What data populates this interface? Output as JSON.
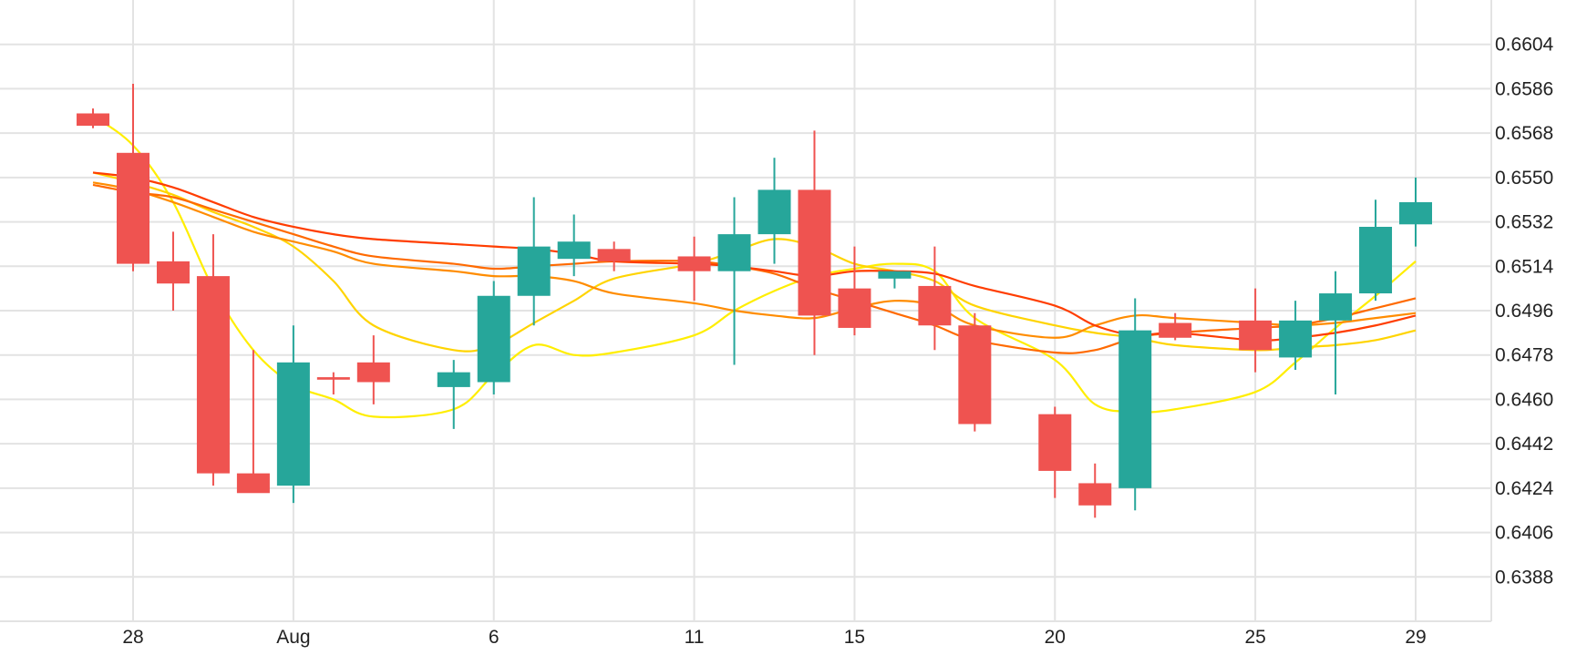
{
  "chart_data": {
    "type": "candlestick",
    "x_axis": {
      "ticks": [
        "28",
        "Aug",
        "6",
        "11",
        "15",
        "20",
        "25",
        "29"
      ],
      "tick_positions": [
        "Jul 28",
        "Aug 1",
        "Aug 6",
        "Aug 11",
        "Aug 15",
        "Aug 20",
        "Aug 25",
        "Aug 29"
      ]
    },
    "y_axis": {
      "position": "right",
      "range": [
        0.637,
        0.6622
      ],
      "ticks": [
        "0.6604",
        "0.6586",
        "0.6568",
        "0.6550",
        "0.6532",
        "0.6514",
        "0.6496",
        "0.6478",
        "0.6460",
        "0.6442",
        "0.6424",
        "0.6406",
        "0.6388"
      ]
    },
    "grid": true,
    "colors": {
      "up": "#26a69a",
      "down": "#ef5350",
      "grid": "#e3e3e3"
    },
    "candles": [
      {
        "date": "Jul 27",
        "open": 0.6576,
        "high": 0.6578,
        "low": 0.657,
        "close": 0.6571
      },
      {
        "date": "Jul 28",
        "open": 0.656,
        "high": 0.6588,
        "low": 0.6512,
        "close": 0.6515
      },
      {
        "date": "Jul 29",
        "open": 0.6516,
        "high": 0.6528,
        "low": 0.6496,
        "close": 0.6507
      },
      {
        "date": "Jul 30",
        "open": 0.651,
        "high": 0.6527,
        "low": 0.6425,
        "close": 0.643
      },
      {
        "date": "Jul 31",
        "open": 0.643,
        "high": 0.648,
        "low": 0.6423,
        "close": 0.6422
      },
      {
        "date": "Aug 1",
        "open": 0.6425,
        "high": 0.649,
        "low": 0.6418,
        "close": 0.6475
      },
      {
        "date": "Aug 2",
        "open": 0.6469,
        "high": 0.6471,
        "low": 0.6462,
        "close": 0.6468
      },
      {
        "date": "Aug 3",
        "open": 0.6475,
        "high": 0.6486,
        "low": 0.6458,
        "close": 0.6467
      },
      {
        "date": "Aug 5",
        "open": 0.6465,
        "high": 0.6476,
        "low": 0.6448,
        "close": 0.6471
      },
      {
        "date": "Aug 6",
        "open": 0.6467,
        "high": 0.6508,
        "low": 0.6462,
        "close": 0.6502
      },
      {
        "date": "Aug 7",
        "open": 0.6502,
        "high": 0.6542,
        "low": 0.649,
        "close": 0.6522
      },
      {
        "date": "Aug 8",
        "open": 0.6517,
        "high": 0.6535,
        "low": 0.651,
        "close": 0.6524
      },
      {
        "date": "Aug 9",
        "open": 0.6521,
        "high": 0.6524,
        "low": 0.6512,
        "close": 0.6516
      },
      {
        "date": "Aug 11",
        "open": 0.6518,
        "high": 0.6526,
        "low": 0.65,
        "close": 0.6512
      },
      {
        "date": "Aug 12",
        "open": 0.6512,
        "high": 0.6542,
        "low": 0.6474,
        "close": 0.6527
      },
      {
        "date": "Aug 13",
        "open": 0.6527,
        "high": 0.6558,
        "low": 0.6515,
        "close": 0.6545
      },
      {
        "date": "Aug 14",
        "open": 0.6545,
        "high": 0.6569,
        "low": 0.6478,
        "close": 0.6494
      },
      {
        "date": "Aug 15",
        "open": 0.6505,
        "high": 0.6522,
        "low": 0.6486,
        "close": 0.6489
      },
      {
        "date": "Aug 16",
        "open": 0.6509,
        "high": 0.6512,
        "low": 0.6505,
        "close": 0.6512
      },
      {
        "date": "Aug 17",
        "open": 0.6506,
        "high": 0.6522,
        "low": 0.648,
        "close": 0.649
      },
      {
        "date": "Aug 18",
        "open": 0.649,
        "high": 0.6495,
        "low": 0.6447,
        "close": 0.645
      },
      {
        "date": "Aug 20",
        "open": 0.6454,
        "high": 0.6457,
        "low": 0.642,
        "close": 0.6431
      },
      {
        "date": "Aug 21",
        "open": 0.6426,
        "high": 0.6434,
        "low": 0.6412,
        "close": 0.6417
      },
      {
        "date": "Aug 22",
        "open": 0.6424,
        "high": 0.6501,
        "low": 0.6415,
        "close": 0.6488
      },
      {
        "date": "Aug 23",
        "open": 0.6491,
        "high": 0.6495,
        "low": 0.6484,
        "close": 0.6485
      },
      {
        "date": "Aug 25",
        "open": 0.6492,
        "high": 0.6505,
        "low": 0.6471,
        "close": 0.648
      },
      {
        "date": "Aug 26",
        "open": 0.6477,
        "high": 0.65,
        "low": 0.6472,
        "close": 0.6492
      },
      {
        "date": "Aug 27",
        "open": 0.6492,
        "high": 0.6512,
        "low": 0.6462,
        "close": 0.6503
      },
      {
        "date": "Aug 28",
        "open": 0.6503,
        "high": 0.6541,
        "low": 0.65,
        "close": 0.653
      },
      {
        "date": "Aug 29",
        "open": 0.6531,
        "high": 0.655,
        "low": 0.6522,
        "close": 0.654
      }
    ],
    "series": [
      {
        "color": "#ffee00",
        "values": [
          0.6575,
          0.6563,
          0.654,
          0.6505,
          0.648,
          0.6466,
          0.646,
          0.6453,
          0.6456,
          0.647,
          0.6482,
          0.6478,
          0.6479,
          0.6486,
          0.6496,
          0.6504,
          0.651,
          0.6513,
          0.6515,
          0.6512,
          0.6493,
          0.6476,
          0.6458,
          0.6455,
          0.6456,
          0.6463,
          0.6475,
          0.6489,
          0.6502,
          0.6516
        ]
      },
      {
        "color": "#ffd400",
        "values": [
          0.6552,
          0.6548,
          0.6543,
          0.6536,
          0.653,
          0.6522,
          0.6508,
          0.649,
          0.648,
          0.6482,
          0.6491,
          0.65,
          0.6509,
          0.6515,
          0.652,
          0.6525,
          0.6522,
          0.6515,
          0.6512,
          0.6508,
          0.6498,
          0.649,
          0.6487,
          0.6485,
          0.6482,
          0.648,
          0.6481,
          0.6482,
          0.6484,
          0.6488
        ]
      },
      {
        "color": "#ff8c00",
        "values": [
          0.6548,
          0.6545,
          0.654,
          0.6534,
          0.6528,
          0.6524,
          0.652,
          0.6515,
          0.6512,
          0.651,
          0.651,
          0.6508,
          0.6503,
          0.6499,
          0.6496,
          0.6494,
          0.6493,
          0.6497,
          0.65,
          0.6498,
          0.649,
          0.6485,
          0.649,
          0.6494,
          0.6493,
          0.6491,
          0.649,
          0.6491,
          0.6493,
          0.6495
        ]
      },
      {
        "color": "#ff6a00",
        "values": [
          0.6547,
          0.6544,
          0.6542,
          0.6537,
          0.6532,
          0.6527,
          0.6522,
          0.6518,
          0.6515,
          0.6513,
          0.6514,
          0.6515,
          0.6516,
          0.6516,
          0.6514,
          0.6511,
          0.6505,
          0.65,
          0.6495,
          0.649,
          0.6484,
          0.6479,
          0.648,
          0.6485,
          0.6487,
          0.6489,
          0.649,
          0.6493,
          0.6497,
          0.6501
        ]
      },
      {
        "color": "#ff3d00",
        "values": [
          0.6552,
          0.655,
          0.6546,
          0.654,
          0.6534,
          0.653,
          0.6527,
          0.6525,
          0.6523,
          0.6522,
          0.6521,
          0.6519,
          0.6516,
          0.6515,
          0.6514,
          0.6512,
          0.651,
          0.6512,
          0.6512,
          0.6511,
          0.6506,
          0.6498,
          0.649,
          0.6486,
          0.6487,
          0.6484,
          0.6485,
          0.6487,
          0.649,
          0.6494
        ]
      }
    ]
  }
}
